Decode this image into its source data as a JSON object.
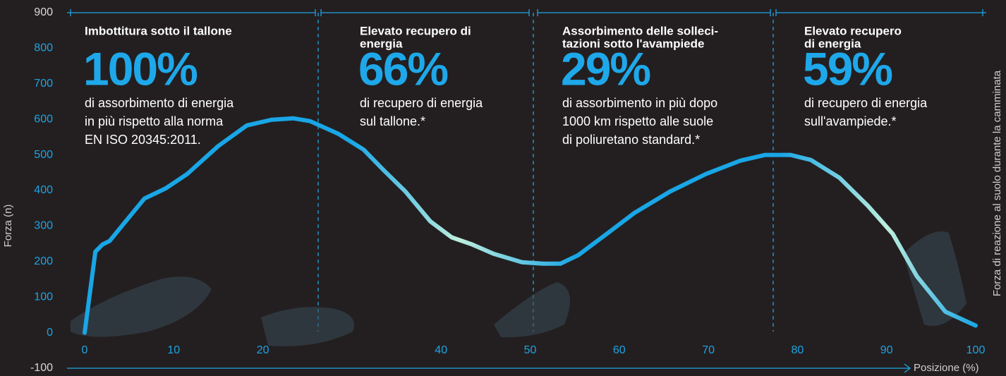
{
  "chart_data": {
    "type": "line",
    "y_label": "Forza (n)",
    "y2_label": "Forza di reazione al suolo durante la camminata",
    "x_label": "Posizione (%)",
    "xlim": [
      0,
      100
    ],
    "xticks": [
      0,
      10,
      20,
      40,
      50,
      60,
      70,
      80,
      90,
      100
    ],
    "ylim": [
      -100,
      900
    ],
    "yticks": [
      -100,
      0,
      100,
      200,
      300,
      400,
      500,
      600,
      700,
      800,
      900
    ],
    "color": "#19a6e6",
    "x": [
      0,
      1.2,
      2,
      2.8,
      4.4,
      6.7,
      9.1,
      11.5,
      15,
      18.2,
      21,
      23.4,
      25.3,
      28.5,
      31.3,
      33.6,
      36,
      38.8,
      41.2,
      43.5,
      45.9,
      49.1,
      51.5,
      53.4,
      55.4,
      58.6,
      61.7,
      65.7,
      69.7,
      73.6,
      76.4,
      79.2,
      81.5,
      84.7,
      87.9,
      90.7,
      93.4,
      96.6,
      100
    ],
    "values": [
      0,
      228,
      248,
      258,
      307,
      377,
      406,
      446,
      525,
      583,
      599,
      603,
      595,
      559,
      515,
      456,
      397,
      313,
      268,
      248,
      222,
      198,
      194,
      194,
      218,
      278,
      337,
      397,
      446,
      484,
      500,
      500,
      486,
      436,
      357,
      278,
      159,
      59,
      20
    ],
    "annotations": [
      {
        "heading": [
          "Imbottitura sotto il tallone"
        ],
        "value_label": "100%",
        "text": [
          "di assorbimento di energia",
          "in più rispetto alla norma",
          "EN ISO 20345:2011."
        ]
      },
      {
        "heading": [
          "Elevato recupero di",
          "energia"
        ],
        "value_label": "66%",
        "text": [
          "di recupero di energia",
          "sul tallone.*"
        ]
      },
      {
        "heading": [
          "Assorbimento delle solleci-",
          "tazioni sotto l'avampiede"
        ],
        "value_label": "29%",
        "text": [
          "di assorbimento in più dopo",
          "1000 km rispetto alle suole",
          "di poliuretano standard.*"
        ]
      },
      {
        "heading": [
          "Elevato recupero",
          "di energia"
        ],
        "value_label": "59%",
        "text": [
          "di recupero di energia",
          "sull'avampiede.*"
        ]
      }
    ]
  }
}
